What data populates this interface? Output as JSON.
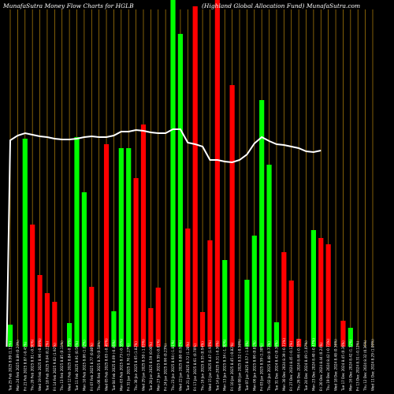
{
  "chart_data": {
    "type": "bar",
    "title_left": "MunafaSutra  Money Flow  Charts for HGLB",
    "title_right": "(Highland  Global Allocation  Fund) MunafaSutra.com",
    "colors": {
      "background": "#000000",
      "up": "#00ff00",
      "down": "#ff0000",
      "grid": "#b8860b",
      "line": "#ffffff"
    },
    "ylim": [
      0,
      440
    ],
    "line_ylim": [
      0,
      440
    ],
    "categories": [
      "Tue 25 Feb 2025 8.99 (1.13%)",
      "Mon 24 Feb 2025 8.89 (0.23%)",
      "Fri 21 Feb 2025 8.87 (-0.45%)",
      "Thu 20 Feb 2025 8.91 (-0.56%)",
      "Wed 19 Feb 2025 8.96 (-0.89%)",
      "Tue 18 Feb 2025 9.04 (0.22%)",
      "Fri 14 Feb 2025 9.02 (1.92%)",
      "Thu 13 Feb 2025 8.85 (0.11%)",
      "Wed 12 Feb 2025 8.84 (-0.79%)",
      "Tue 11 Feb 2025 8.91 (0.56%)",
      "Mon 10 Feb 2025 8.86 (1.02%)",
      "Fri 07 Feb 2025 8.77 (0.80%)",
      "Thu 06 Feb 2025 8.70 (0.58%)",
      "Wed 05 Feb 2025 8.65 (-0.46%)",
      "Tue 04 Feb 2025 8.69 (-0.46%)",
      "Mon 03 Feb 2025 8.73 (-0.35%)",
      "Fri 31 Jan 2025 8.76 (1.27%)",
      "Thu 30 Jan 2025 8.65 (1.82%)",
      "Wed 29 Jan 2025 8.50 (-1.05%)",
      "Tue 28 Jan 2025 8.59 (0.00%)",
      "Mon 27 Jan 2025 8.59 (-0.81%)",
      "Fri 24 Jan 2025 8.66 (0.23%)",
      "Thu 23 Jan 2025 8.64 (-1.81%)",
      "Wed 22 Jan 2025 8.80 (0.92%)",
      "Tue 21 Jan 2025 8.72 (1.28%)",
      "Fri 17 Jan 2025 8.61 (0.70%)",
      "Thu 16 Jan 2025 8.55 (0.94%)",
      "Wed 15 Jan 2025 8.47 (1.93%)",
      "Tue 14 Jan 2025 8.31 (-0.36%)",
      "Mon 13 Jan 2025 8.34 (-1.30%)",
      "Fri 10 Jan 2025 8.45 (-0.82%)",
      "Wed 08 Jan 2025 8.52 (-0.58%)",
      "Tue 07 Jan 2025 8.57 (-1.04%)",
      "Mon 06 Jan 2025 8.66 (0.81%)",
      "Fri 03 Jan 2025 8.59 (1.30%)",
      "Thu 02 Jan 2025 8.48 (0.71%)",
      "Tue 31 Dec 2024 8.42 (0.36%)",
      "Mon 30 Dec 2024 8.39 (-0.71%)",
      "Fri 27 Dec 2024 8.45 (-0.12%)",
      "Thu 26 Dec 2024 8.46 (-0.35%)",
      "Tue 24 Dec 2024 8.49 (1.07%)",
      "Mon 23 Dec 2024 8.40 (-0.47%)",
      "Fri 20 Dec 2024 8.44 (0.24%)",
      "Thu 19 Dec 2024 8.42 (-0.71%)",
      "Wed 18 Dec 2024 8.48 (0.36%)",
      "Tue 17 Dec 2024 8.45 (0.36%)",
      "Mon 16 Dec 2024 8.42 (1.32%)",
      "Fri 13 Dec 2024 8.31 (-0.12%)",
      "Thu 12 Dec 2024 8.32 (0.36%)",
      "Wed 11 Dec 2024 8.29 (1.09%)"
    ],
    "bars": [
      {
        "value": 28,
        "dir": "up"
      },
      {
        "value": 0,
        "dir": "none"
      },
      {
        "value": 264,
        "dir": "up"
      },
      {
        "value": 155,
        "dir": "down"
      },
      {
        "value": 91,
        "dir": "down"
      },
      {
        "value": 68,
        "dir": "down"
      },
      {
        "value": 57,
        "dir": "down"
      },
      {
        "value": 0,
        "dir": "none"
      },
      {
        "value": 30,
        "dir": "up"
      },
      {
        "value": 266,
        "dir": "up"
      },
      {
        "value": 196,
        "dir": "up"
      },
      {
        "value": 76,
        "dir": "down"
      },
      {
        "value": 0,
        "dir": "none"
      },
      {
        "value": 257,
        "dir": "down"
      },
      {
        "value": 45,
        "dir": "up"
      },
      {
        "value": 252,
        "dir": "up"
      },
      {
        "value": 252,
        "dir": "up"
      },
      {
        "value": 214,
        "dir": "down"
      },
      {
        "value": 282,
        "dir": "down"
      },
      {
        "value": 49,
        "dir": "down"
      },
      {
        "value": 75,
        "dir": "down"
      },
      {
        "value": 0,
        "dir": "none"
      },
      {
        "value": 440,
        "dir": "up"
      },
      {
        "value": 397,
        "dir": "up"
      },
      {
        "value": 150,
        "dir": "down"
      },
      {
        "value": 432,
        "dir": "down"
      },
      {
        "value": 44,
        "dir": "down"
      },
      {
        "value": 135,
        "dir": "down"
      },
      {
        "value": 440,
        "dir": "down"
      },
      {
        "value": 110,
        "dir": "up"
      },
      {
        "value": 332,
        "dir": "down"
      },
      {
        "value": 0,
        "dir": "none"
      },
      {
        "value": 85,
        "dir": "up"
      },
      {
        "value": 141,
        "dir": "up"
      },
      {
        "value": 313,
        "dir": "up"
      },
      {
        "value": 231,
        "dir": "up"
      },
      {
        "value": 31,
        "dir": "up"
      },
      {
        "value": 120,
        "dir": "down"
      },
      {
        "value": 84,
        "dir": "down"
      },
      {
        "value": 10,
        "dir": "down"
      },
      {
        "value": 0,
        "dir": "none"
      },
      {
        "value": 148,
        "dir": "up"
      },
      {
        "value": 138,
        "dir": "down"
      },
      {
        "value": 130,
        "dir": "down"
      },
      {
        "value": 0,
        "dir": "none"
      },
      {
        "value": 33,
        "dir": "down"
      },
      {
        "value": 24,
        "dir": "up"
      },
      {
        "value": 0,
        "dir": "none"
      },
      {
        "value": 0,
        "dir": "none"
      },
      {
        "value": 0,
        "dir": "none"
      }
    ],
    "line_values": [
      262,
      268,
      271,
      269,
      267,
      266,
      264,
      263,
      263,
      264,
      266,
      267,
      266,
      266,
      268,
      273,
      273,
      275,
      274,
      272,
      271,
      271,
      276,
      276,
      259,
      257,
      254,
      237,
      237,
      235,
      234,
      237,
      244,
      258,
      266,
      261,
      257,
      256,
      254,
      252,
      248,
      247,
      249,
      0,
      0,
      0,
      0,
      0,
      0,
      0
    ],
    "line_start_value": 0,
    "grid": "vertical"
  }
}
